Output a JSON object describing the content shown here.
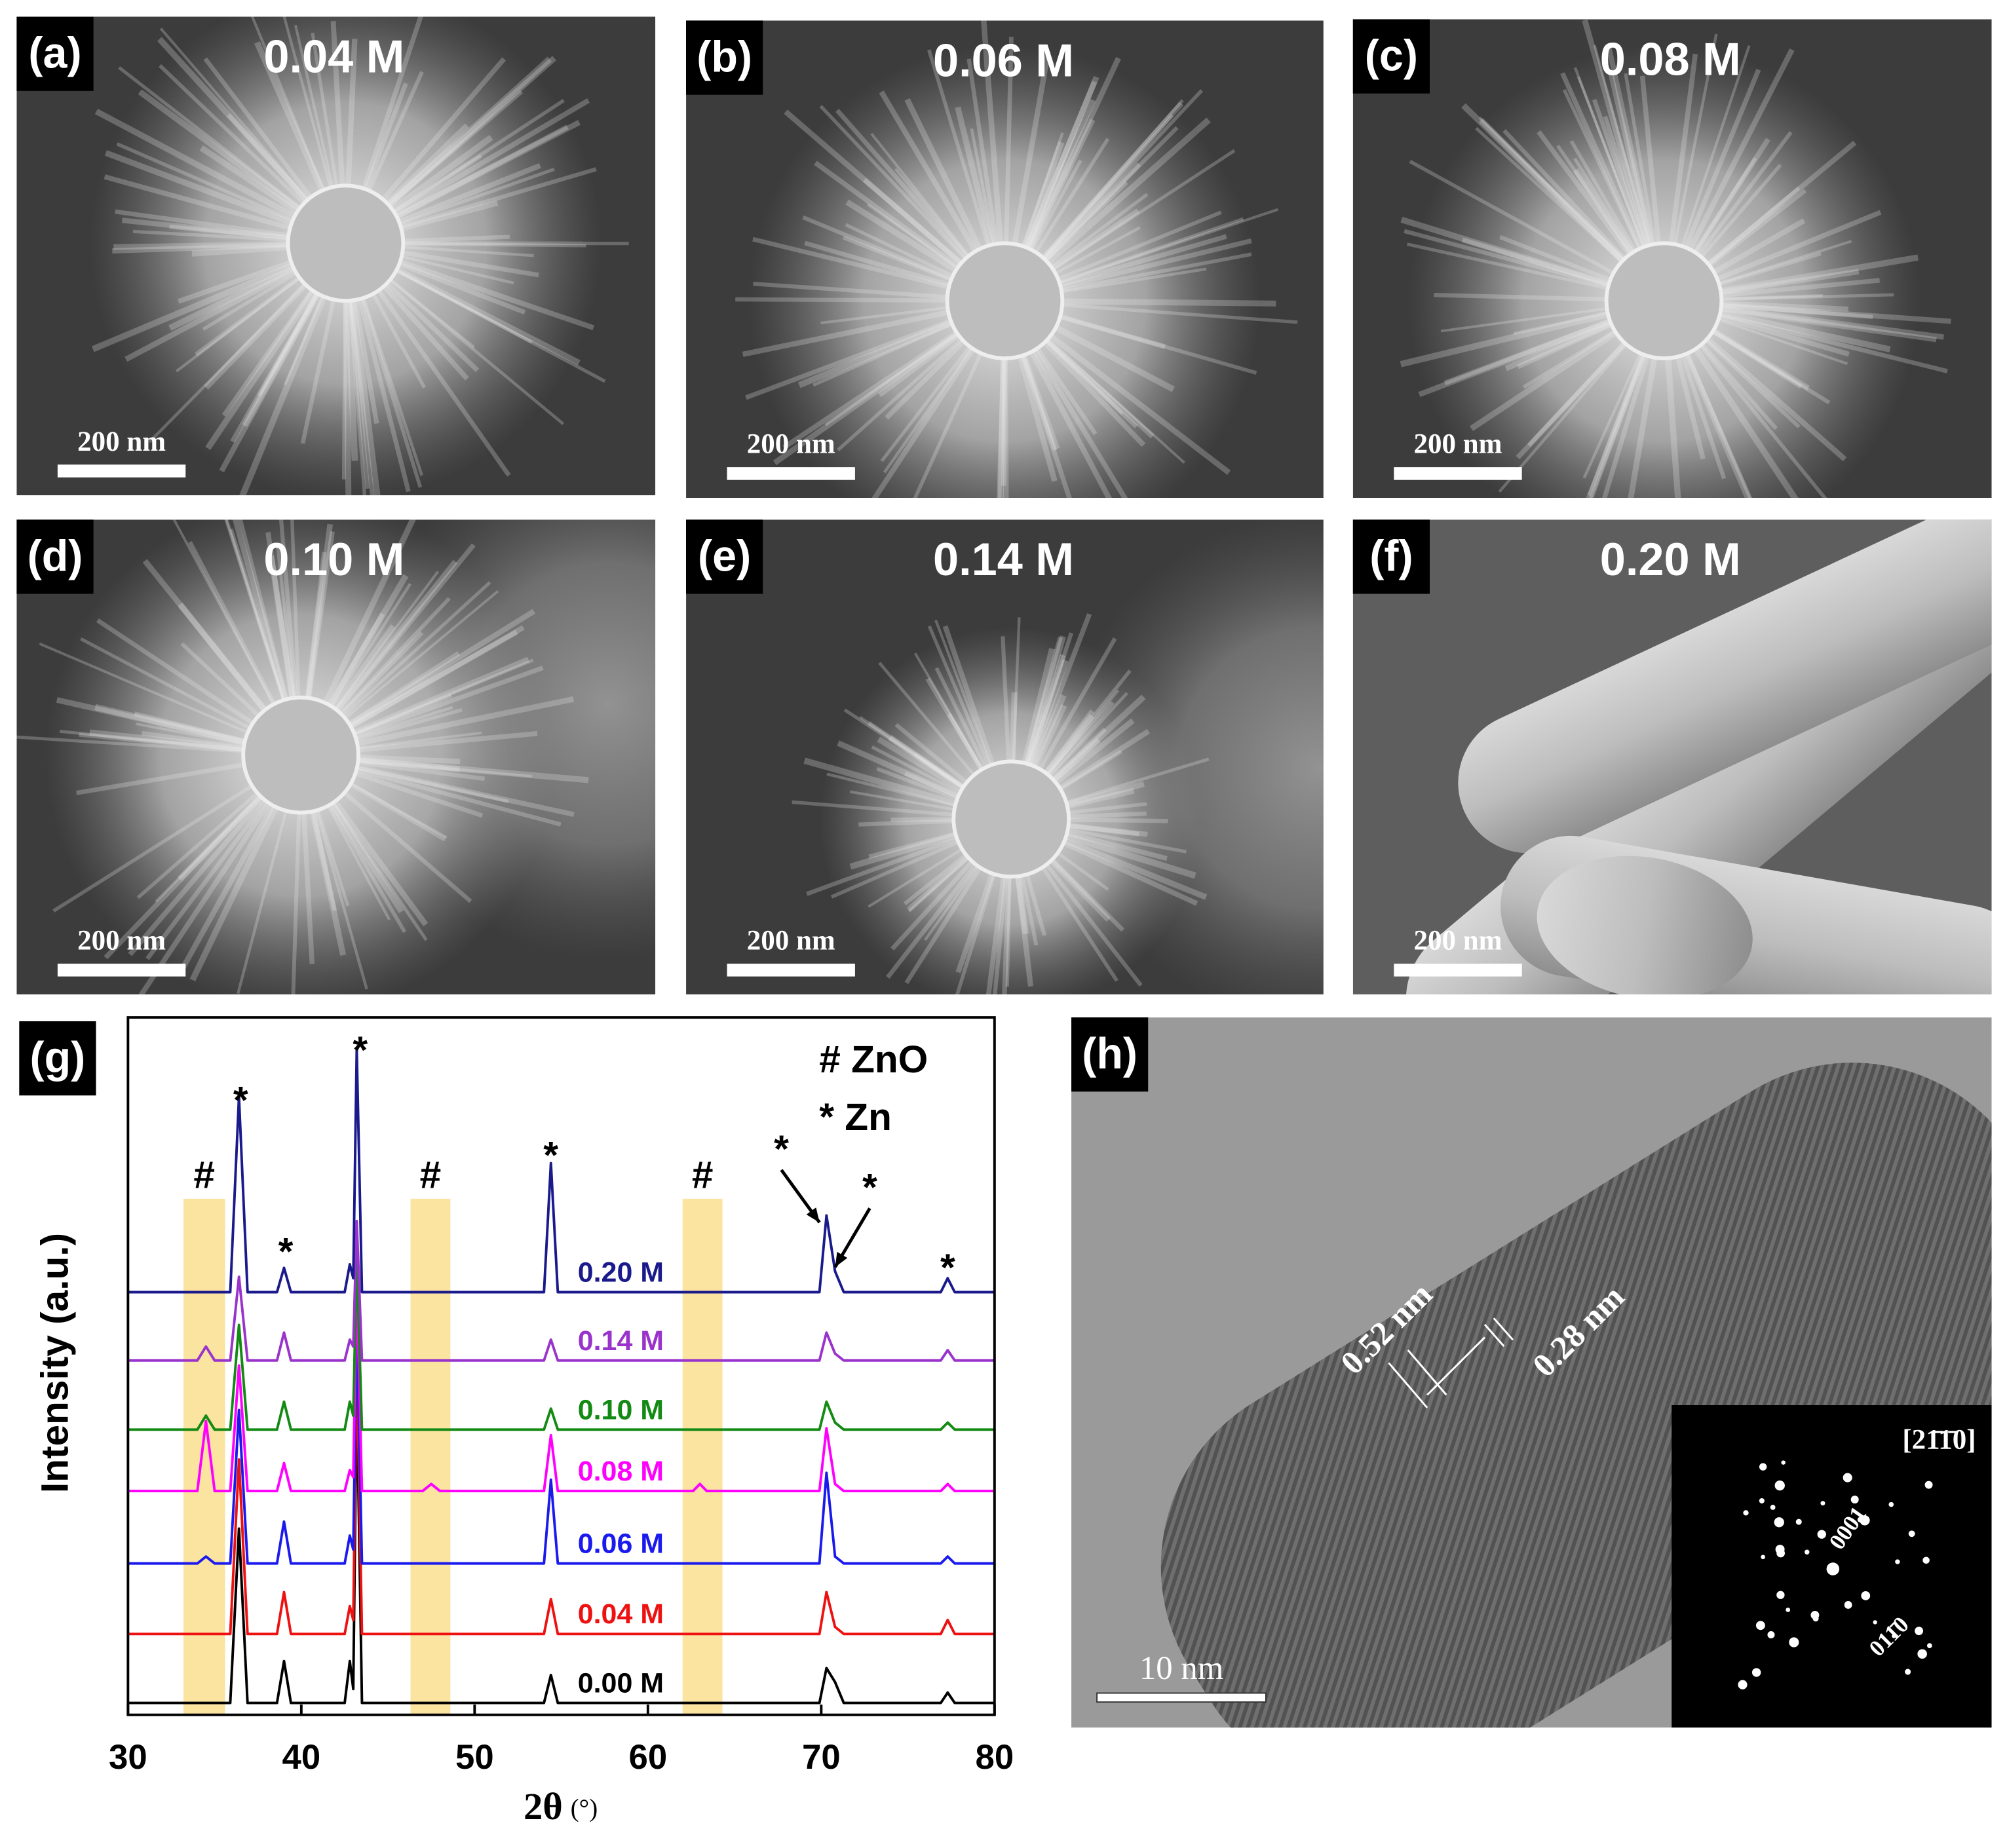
{
  "panels": [
    {
      "label": "(a)",
      "concentration": "0.04 M",
      "scale_bar": "200 nm"
    },
    {
      "label": "(b)",
      "concentration": "0.06 M",
      "scale_bar": "200 nm"
    },
    {
      "label": "(c)",
      "concentration": "0.08 M",
      "scale_bar": "200 nm"
    },
    {
      "label": "(d)",
      "concentration": "0.10 M",
      "scale_bar": "200 nm"
    },
    {
      "label": "(e)",
      "concentration": "0.14 M",
      "scale_bar": "200 nm"
    },
    {
      "label": "(f)",
      "concentration": "0.20 M",
      "scale_bar": "200 nm"
    }
  ],
  "chart_data": {
    "type": "line",
    "label": "(g)",
    "xlabel": "2θ",
    "xlabel_unit": "(°)",
    "ylabel": "Intensity (a.u.)",
    "xlim": [
      30,
      80
    ],
    "xticks": [
      30,
      40,
      50,
      60,
      70,
      80
    ],
    "ylim": [
      0,
      100
    ],
    "legend": [
      "# ZnO",
      "* Zn"
    ],
    "bands": {
      "label": "#",
      "color": "#fbe3a0",
      "ranges": [
        [
          33.2,
          35.6
        ],
        [
          46.3,
          48.6
        ],
        [
          62,
          64.3
        ]
      ],
      "top": 74,
      "label_y": 77
    },
    "peak_marks": {
      "label": "*",
      "x": [
        36.5,
        39.1,
        43.4,
        54.4,
        67.7,
        72.8,
        77.3
      ],
      "y": [
        87.7,
        66,
        94.9,
        79.8,
        80.7,
        75.2,
        63.7
      ],
      "arrow_to": [
        null,
        null,
        null,
        null,
        [
          69.9,
          70.6
        ],
        [
          70.8,
          64.2
        ],
        null
      ]
    },
    "x": [
      30,
      34.0,
      34.5,
      35.0,
      35.9,
      36.4,
      36.9,
      38.6,
      39.0,
      39.4,
      42.5,
      42.8,
      43.0,
      43.2,
      43.5,
      47.0,
      47.5,
      48.0,
      54.0,
      54.4,
      54.8,
      62.6,
      63.0,
      63.4,
      69.9,
      70.3,
      70.8,
      71.3,
      76.9,
      77.3,
      77.7,
      80
    ],
    "series": [
      {
        "name": "0.00 M",
        "color": "#000000",
        "values": [
          1.7,
          1.7,
          1.7,
          1.7,
          1.7,
          26.7,
          1.7,
          1.7,
          7.7,
          1.7,
          1.7,
          7.7,
          3.7,
          46.7,
          1.7,
          1.7,
          1.7,
          1.7,
          1.7,
          5.7,
          1.7,
          1.7,
          1.7,
          1.7,
          1.7,
          6.7,
          4.7,
          1.7,
          1.7,
          3.2,
          1.7,
          1.7
        ]
      },
      {
        "name": "0.04 M",
        "color": "#ee1111",
        "values": [
          11.6,
          11.6,
          11.6,
          11.6,
          11.6,
          36.6,
          11.6,
          11.6,
          17.6,
          11.6,
          11.6,
          15.6,
          13.6,
          51.6,
          11.6,
          11.6,
          11.6,
          11.6,
          11.6,
          16.6,
          11.6,
          11.6,
          11.6,
          11.6,
          11.6,
          17.6,
          12.6,
          11.6,
          11.6,
          13.6,
          11.6,
          11.6
        ]
      },
      {
        "name": "0.06 M",
        "color": "#1a1aee",
        "values": [
          21.7,
          21.7,
          22.7,
          21.7,
          21.7,
          43.7,
          21.7,
          21.7,
          27.7,
          21.7,
          21.7,
          25.7,
          23.7,
          56.7,
          21.7,
          21.7,
          21.7,
          21.7,
          21.7,
          33.7,
          21.7,
          21.7,
          21.7,
          21.7,
          21.7,
          34.7,
          22.7,
          21.7,
          21.7,
          22.7,
          21.7,
          21.7
        ]
      },
      {
        "name": "0.08 M",
        "color": "#ff00ff",
        "values": [
          32.1,
          32.1,
          42.1,
          32.1,
          32.1,
          50.1,
          32.1,
          32.1,
          36.1,
          32.1,
          32.1,
          35.1,
          34.1,
          62.1,
          32.1,
          32.1,
          33.1,
          32.1,
          32.1,
          40.1,
          32.1,
          32.1,
          33.1,
          32.1,
          32.1,
          41.1,
          33.1,
          32.1,
          32.1,
          33.1,
          32.1,
          32.1
        ]
      },
      {
        "name": "0.10 M",
        "color": "#138a13",
        "values": [
          40.9,
          40.9,
          42.9,
          40.9,
          40.9,
          55.9,
          40.9,
          40.9,
          44.9,
          40.9,
          40.9,
          44.9,
          42.9,
          65.9,
          40.9,
          40.9,
          40.9,
          40.9,
          40.9,
          43.9,
          40.9,
          40.9,
          40.9,
          40.9,
          40.9,
          44.9,
          41.9,
          40.9,
          40.9,
          41.9,
          40.9,
          40.9
        ]
      },
      {
        "name": "0.14 M",
        "color": "#9933cc",
        "values": [
          50.8,
          50.8,
          52.8,
          50.8,
          50.8,
          62.8,
          50.8,
          50.8,
          54.8,
          50.8,
          50.8,
          53.8,
          52.8,
          70.8,
          50.8,
          50.8,
          50.8,
          50.8,
          50.8,
          53.8,
          50.8,
          50.8,
          50.8,
          50.8,
          50.8,
          54.8,
          51.8,
          50.8,
          50.8,
          52.3,
          50.8,
          50.8
        ]
      },
      {
        "name": "0.20 M",
        "color": "#1a1a8c",
        "values": [
          60.6,
          60.6,
          60.6,
          60.6,
          60.6,
          88.6,
          60.6,
          60.6,
          64.1,
          60.6,
          60.6,
          64.6,
          62.6,
          95.4,
          60.6,
          60.6,
          60.6,
          60.6,
          60.6,
          79.1,
          60.6,
          60.6,
          60.6,
          60.6,
          60.6,
          71.6,
          63.6,
          60.6,
          60.6,
          62.6,
          60.6,
          60.6
        ]
      }
    ]
  },
  "tem": {
    "label": "(h)",
    "spacings": [
      "0.52 nm",
      "0.28 nm"
    ],
    "scale_bar": "10 nm",
    "inset": {
      "zone_axis": "[21̄1̄0]",
      "spots": [
        "0001",
        "011̄0"
      ]
    }
  }
}
